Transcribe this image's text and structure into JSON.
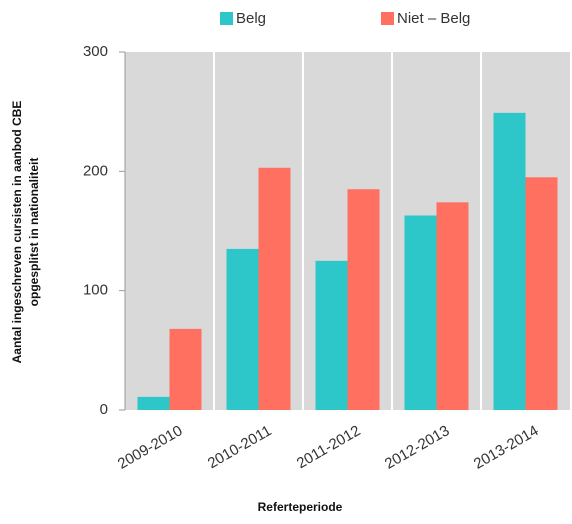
{
  "chart_data": {
    "type": "bar",
    "categories": [
      "2009-2010",
      "2010-2011",
      "2011-2012",
      "2012-2013",
      "2013-2014"
    ],
    "series": [
      {
        "name": "Belg",
        "color": "#2ec7c9",
        "values": [
          11,
          135,
          125,
          163,
          249
        ]
      },
      {
        "name": "Niet – Belg",
        "color": "#ff7060",
        "values": [
          68,
          203,
          185,
          174,
          195
        ]
      }
    ],
    "ylim": [
      0,
      300
    ],
    "yticks": [
      0,
      100,
      200,
      300
    ],
    "xlabel": "Referteperiode",
    "ylabel": [
      "Aantal ingeschreven cursisten in aanbod  CBE",
      "opgesplitst in nationaliteit"
    ],
    "legend": "top",
    "plot_background": "#d9d9d9"
  }
}
